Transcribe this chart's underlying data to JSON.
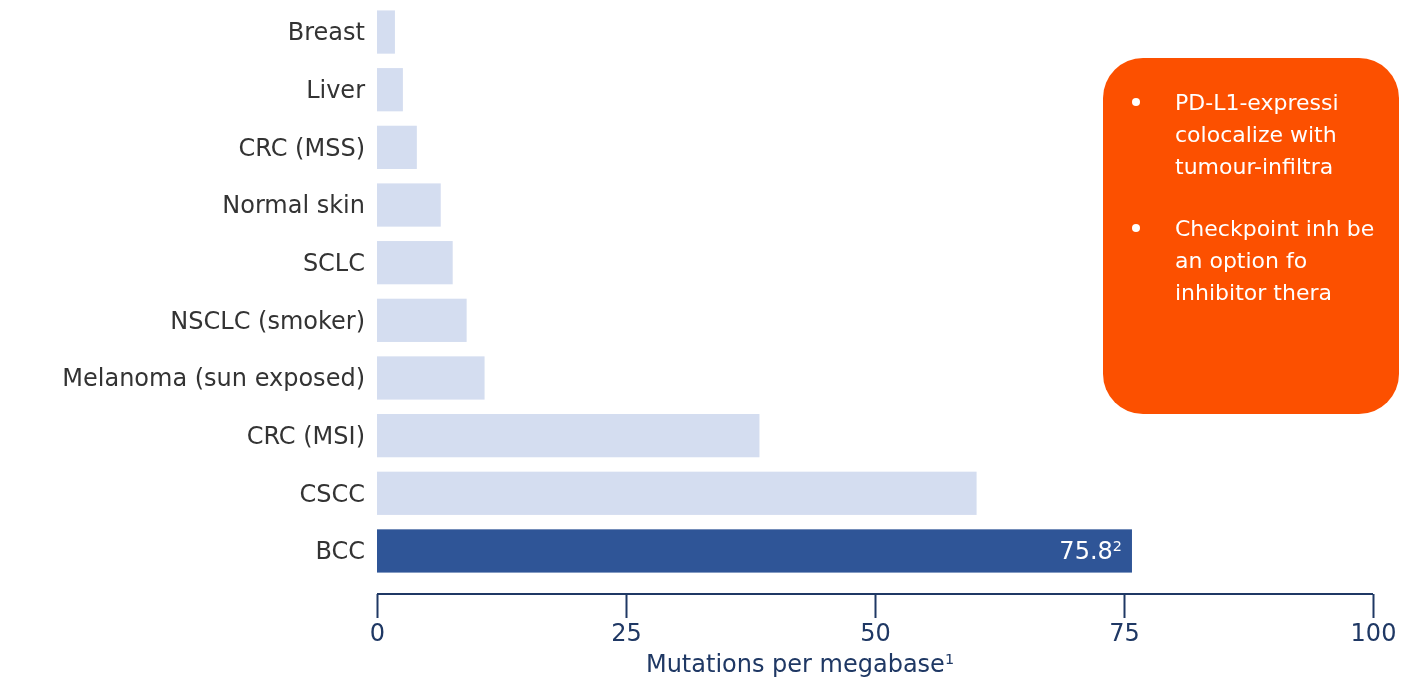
{
  "chart_data": {
    "type": "bar",
    "orientation": "horizontal",
    "xlabel": "Mutations per megabase$^{1}$",
    "categories": [
      "Breast",
      "Liver",
      "CRC (MSS)",
      "Normal skin",
      "SCLC",
      "NSCLC (smoker)",
      "Melanoma (sun exposed)",
      "CRC (MSI)",
      "CSCC",
      "BCC"
    ],
    "values": [
      1.8,
      2.6,
      4.0,
      6.4,
      7.6,
      9.0,
      10.8,
      38.4,
      60.2,
      75.8
    ],
    "colors": [
      "#d4ddf0",
      "#d4ddf0",
      "#d4ddf0",
      "#d4ddf0",
      "#d4ddf0",
      "#d4ddf0",
      "#d4ddf0",
      "#d4ddf0",
      "#d4ddf0",
      "#2f5597"
    ],
    "value_labels": [
      null,
      null,
      null,
      null,
      null,
      null,
      null,
      null,
      null,
      "75.8$^{2}$"
    ],
    "xlim": [
      0,
      100
    ],
    "xticks": [
      0,
      25,
      50,
      75,
      100
    ],
    "annotations": [
      "PD-L1-expressi colocalize with tumour-infiltra",
      "Checkpoint inh be an option fo inhibitor thera"
    ]
  }
}
